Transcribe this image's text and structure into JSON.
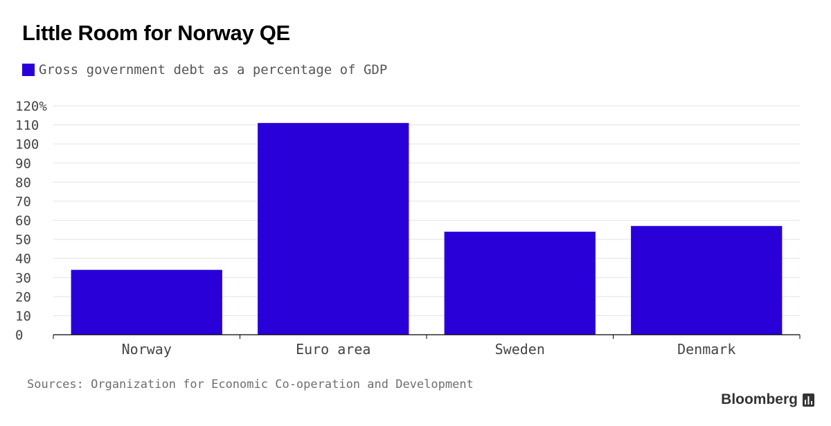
{
  "title": "Little Room for Norway QE",
  "legend": {
    "label": "Gross government debt as a percentage of GDP",
    "color": "#2a00d9"
  },
  "chart_data": {
    "type": "bar",
    "categories": [
      "Norway",
      "Euro area",
      "Sweden",
      "Denmark"
    ],
    "series": [
      {
        "name": "Gross government debt as a percentage of GDP",
        "values": [
          34,
          111,
          54,
          57
        ],
        "color": "#2a00d9"
      }
    ],
    "ylim": [
      0,
      120
    ],
    "yticks": [
      0,
      10,
      20,
      30,
      40,
      50,
      60,
      70,
      80,
      90,
      100,
      110,
      120
    ],
    "ytick_labels": [
      "0",
      "10",
      "20",
      "30",
      "40",
      "50",
      "60",
      "70",
      "80",
      "90",
      "100",
      "110",
      "120%"
    ],
    "grid": true,
    "legend_position": "top-left"
  },
  "source": "Sources: Organization for Economic Co-operation and Development",
  "brand": {
    "name": "Bloomberg",
    "icon": "bloomberg-chart-icon"
  }
}
